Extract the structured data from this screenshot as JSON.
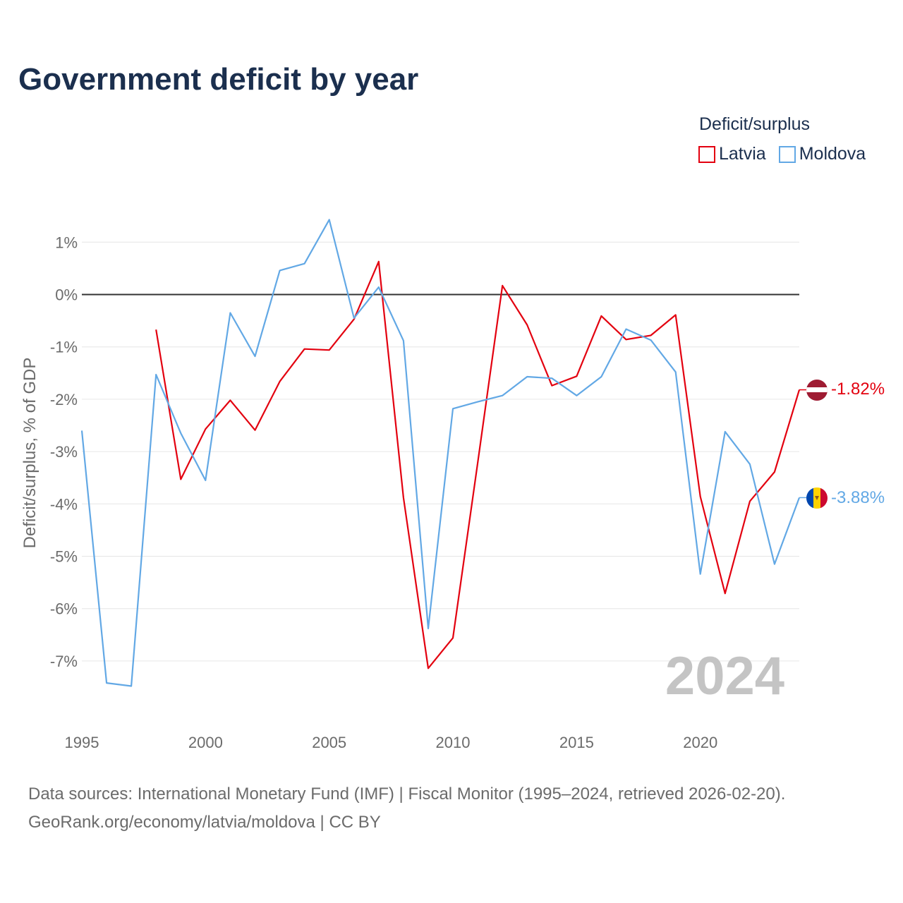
{
  "title": "Government deficit by year",
  "legend": {
    "title": "Deficit/surplus",
    "items": [
      {
        "label": "Latvia",
        "color": "#e3000f"
      },
      {
        "label": "Moldova",
        "color": "#62a8e5"
      }
    ]
  },
  "footer": {
    "line1": "Data sources: International Monetary Fund (IMF) | Fiscal Monitor (1995–2024, retrieved 2026-02-20).",
    "line2": "GeoRank.org/economy/latvia/moldova | CC BY"
  },
  "chart_data": {
    "type": "line",
    "title": "Government deficit by year",
    "xlabel": "",
    "ylabel": "Deficit/surplus, % of GDP",
    "xlim": [
      1995,
      2024
    ],
    "ylim": [
      -8.2,
      1.8
    ],
    "x_ticks": [
      1995,
      2000,
      2005,
      2010,
      2015,
      2020
    ],
    "y_ticks": [
      1,
      0,
      -1,
      -2,
      -3,
      -4,
      -5,
      -6,
      -7
    ],
    "y_tick_labels": [
      "1%",
      "0%",
      "-1%",
      "-2%",
      "-3%",
      "-4%",
      "-5%",
      "-6%",
      "-7%"
    ],
    "watermark": "2024",
    "series": [
      {
        "name": "Latvia",
        "color": "#e3000f",
        "end_label": "-1.82%",
        "x": [
          1998,
          1999,
          2000,
          2001,
          2002,
          2003,
          2004,
          2005,
          2006,
          2007,
          2008,
          2009,
          2010,
          2011,
          2012,
          2013,
          2014,
          2015,
          2016,
          2017,
          2018,
          2019,
          2020,
          2021,
          2022,
          2023,
          2024
        ],
        "values": [
          -0.67,
          -3.53,
          -2.57,
          -2.02,
          -2.59,
          -1.66,
          -1.04,
          -1.06,
          -0.47,
          0.63,
          -3.88,
          -7.14,
          -6.56,
          -3.22,
          0.17,
          -0.58,
          -1.74,
          -1.56,
          -0.41,
          -0.86,
          -0.78,
          -0.39,
          -3.86,
          -5.71,
          -3.95,
          -3.39,
          -1.82
        ]
      },
      {
        "name": "Moldova",
        "color": "#62a8e5",
        "end_label": "-3.88%",
        "x": [
          1995,
          1996,
          1997,
          1998,
          1999,
          2000,
          2001,
          2002,
          2003,
          2004,
          2005,
          2006,
          2007,
          2008,
          2009,
          2010,
          2011,
          2012,
          2013,
          2014,
          2015,
          2016,
          2017,
          2018,
          2019,
          2020,
          2021,
          2022,
          2023,
          2024
        ],
        "values": [
          -2.6,
          -7.42,
          -7.48,
          -1.53,
          -2.65,
          -3.55,
          -0.35,
          -1.18,
          0.46,
          0.59,
          1.43,
          -0.45,
          0.14,
          -0.88,
          -6.38,
          -2.18,
          -2.05,
          -1.93,
          -1.57,
          -1.6,
          -1.93,
          -1.57,
          -0.66,
          -0.87,
          -1.48,
          -5.34,
          -2.62,
          -3.24,
          -5.15,
          -3.88
        ]
      }
    ]
  }
}
